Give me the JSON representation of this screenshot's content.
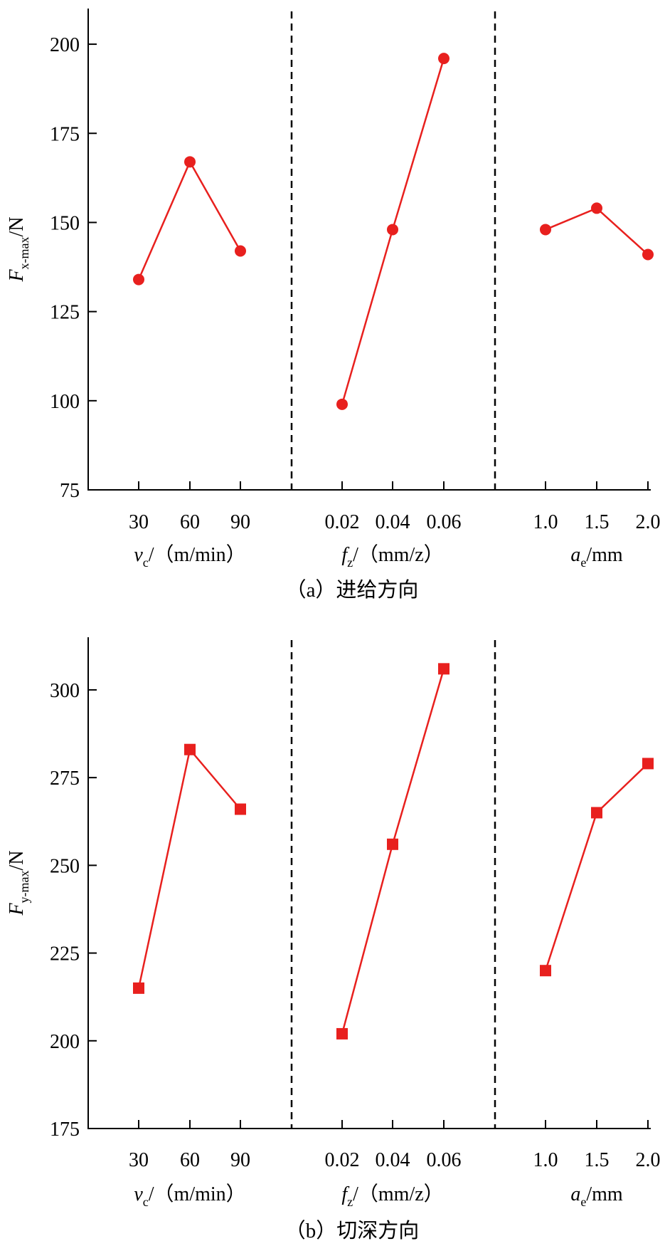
{
  "chart_data": [
    {
      "type": "line",
      "caption": "（a）进给方向",
      "ylabel": {
        "main": "F",
        "sub": "x-max",
        "unit": "/N"
      },
      "ylim": [
        75,
        210
      ],
      "yticks": [
        "75",
        "100",
        "125",
        "150",
        "175",
        "200"
      ],
      "marker": "circle",
      "color": "#e8201e",
      "groups": [
        {
          "xlabel": {
            "main": "v",
            "sub": "c",
            "unit": "/（m/min）"
          },
          "categories": [
            "30",
            "60",
            "90"
          ],
          "values": [
            134,
            167,
            142
          ]
        },
        {
          "xlabel": {
            "main": "f",
            "sub": "z",
            "unit": "/（mm/z）"
          },
          "categories": [
            "0.02",
            "0.04",
            "0.06"
          ],
          "values": [
            99,
            148,
            196
          ]
        },
        {
          "xlabel": {
            "main": "a",
            "sub": "e",
            "unit": "/mm"
          },
          "categories": [
            "1.0",
            "1.5",
            "2.0"
          ],
          "values": [
            148,
            154,
            141
          ]
        }
      ]
    },
    {
      "type": "line",
      "caption": "（b）切深方向",
      "ylabel": {
        "main": "F",
        "sub": "y-max",
        "unit": "/N"
      },
      "ylim": [
        175,
        315
      ],
      "yticks": [
        "175",
        "200",
        "225",
        "250",
        "275",
        "300"
      ],
      "marker": "square",
      "color": "#e8201e",
      "groups": [
        {
          "xlabel": {
            "main": "v",
            "sub": "c",
            "unit": "/（m/min）"
          },
          "categories": [
            "30",
            "60",
            "90"
          ],
          "values": [
            215,
            283,
            266
          ]
        },
        {
          "xlabel": {
            "main": "f",
            "sub": "z",
            "unit": "/（mm/z）"
          },
          "categories": [
            "0.02",
            "0.04",
            "0.06"
          ],
          "values": [
            202,
            256,
            306
          ]
        },
        {
          "xlabel": {
            "main": "a",
            "sub": "e",
            "unit": "/mm"
          },
          "categories": [
            "1.0",
            "1.5",
            "2.0"
          ],
          "values": [
            220,
            265,
            279
          ]
        }
      ]
    }
  ]
}
